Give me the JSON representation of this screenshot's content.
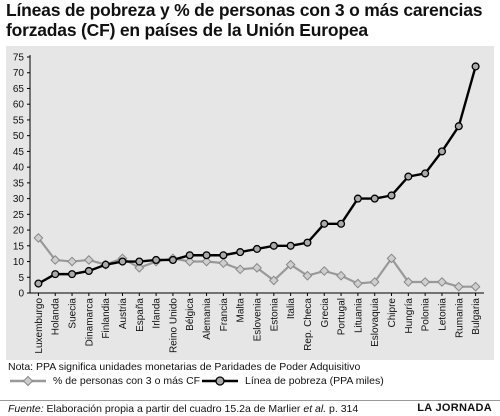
{
  "title": {
    "line1": "Líneas de pobreza y % de personas con 3 o más carencias",
    "line2": "forzadas (CF) en países de la Unión Europea"
  },
  "note": "Nota: PPA significa unidades monetarias de Paridades de Poder Adquisitivo",
  "source": {
    "label": "Fuente:",
    "text_before": "Elaboración propia a partir del cuadro 15.2a de Marlier",
    "et_al": "et al.",
    "text_after": "p. 314"
  },
  "brand": "LA JORNADA",
  "colors": {
    "panel": "#e6e6e6",
    "pct_series": "#999999",
    "poverty_series": "#000000",
    "poverty_marker": "#aaaaaa"
  },
  "chart_data": {
    "type": "line",
    "title": "Líneas de pobreza y % de personas con 3 o más carencias forzadas (CF) en países de la Unión Europea",
    "xlabel": "",
    "ylabel": "",
    "ylim": [
      0,
      75
    ],
    "yticks": [
      0,
      5,
      10,
      15,
      20,
      25,
      30,
      35,
      40,
      45,
      50,
      55,
      60,
      65,
      70,
      75
    ],
    "grid": false,
    "legend_position": "bottom",
    "categories": [
      "Luxemburgo",
      "Holanda",
      "Suecia",
      "Dinamarca",
      "Finlandia",
      "Austria",
      "España",
      "Irlanda",
      "Reino Unido",
      "Bélgica",
      "Alemania",
      "Francia",
      "Malta",
      "Eslovenia",
      "Estonia",
      "Italia",
      "Rep. Checa",
      "Grecia",
      "Portugal",
      "Lituania",
      "Eslovaquia",
      "Chipre",
      "Hungría",
      "Polonia",
      "Letonia",
      "Rumania",
      "Bulgaria"
    ],
    "series": [
      {
        "name": "% de personas con 3 o más CF",
        "marker": "diamond",
        "values": [
          17.5,
          10.5,
          10,
          10.5,
          9,
          11,
          8,
          10,
          11,
          10,
          10,
          9.5,
          7.5,
          8,
          4,
          9,
          5.5,
          7,
          5.5,
          3,
          3.5,
          11,
          3.5,
          3.5,
          3.5,
          2,
          2
        ]
      },
      {
        "name": "Línea de pobreza (PPA miles)",
        "marker": "circle",
        "values": [
          3,
          6,
          6,
          7,
          9,
          10,
          10,
          10.5,
          10.5,
          12,
          12,
          12,
          13,
          14,
          15,
          15,
          16,
          22,
          22,
          30,
          30,
          31,
          37,
          38,
          45,
          53,
          72
        ]
      }
    ]
  }
}
